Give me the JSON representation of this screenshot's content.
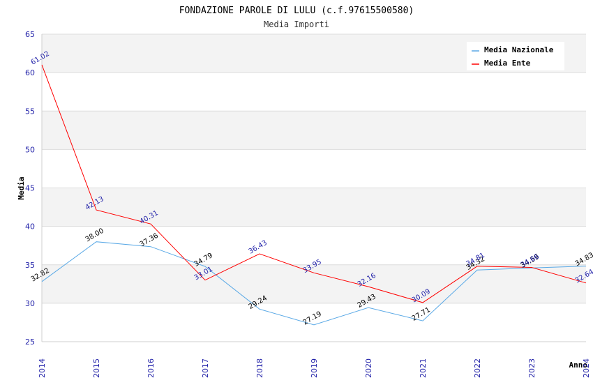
{
  "chart_data": {
    "type": "line",
    "title": "FONDAZIONE PAROLE DI LULU (c.f.97615500580)",
    "subtitle": "Media Importi",
    "xlabel": "Anno",
    "ylabel": "Media",
    "x": [
      "2014",
      "2015",
      "2016",
      "2017",
      "2018",
      "2019",
      "2020",
      "2021",
      "2022",
      "2023",
      "2024"
    ],
    "ylim": [
      25,
      65
    ],
    "yticks": [
      "25",
      "30",
      "35",
      "40",
      "45",
      "50",
      "55",
      "60",
      "65"
    ],
    "grid": "horizontal-bands",
    "legend_position": "top-right",
    "series": [
      {
        "name": "Media Nazionale",
        "color": "#5aa9e6",
        "label_color": "#000000",
        "values": [
          32.82,
          38.0,
          37.36,
          34.79,
          29.24,
          27.19,
          29.43,
          27.71,
          34.32,
          34.59,
          34.83
        ],
        "labels": [
          "32.82",
          "38.00",
          "37.36",
          "34.79",
          "29.24",
          "27.19",
          "29.43",
          "27.71",
          "34.32",
          "34.59",
          "34.83"
        ]
      },
      {
        "name": "Media Ente",
        "color": "#ff0000",
        "label_color": "#1f1fa8",
        "values": [
          61.02,
          42.13,
          40.31,
          33.01,
          36.43,
          33.95,
          32.16,
          30.09,
          34.81,
          34.66,
          32.64
        ],
        "labels": [
          "61.02",
          "42.13",
          "40.31",
          "33.01",
          "36.43",
          "33.95",
          "32.16",
          "30.09",
          "34.81",
          "34.66",
          "32.64"
        ]
      }
    ]
  }
}
